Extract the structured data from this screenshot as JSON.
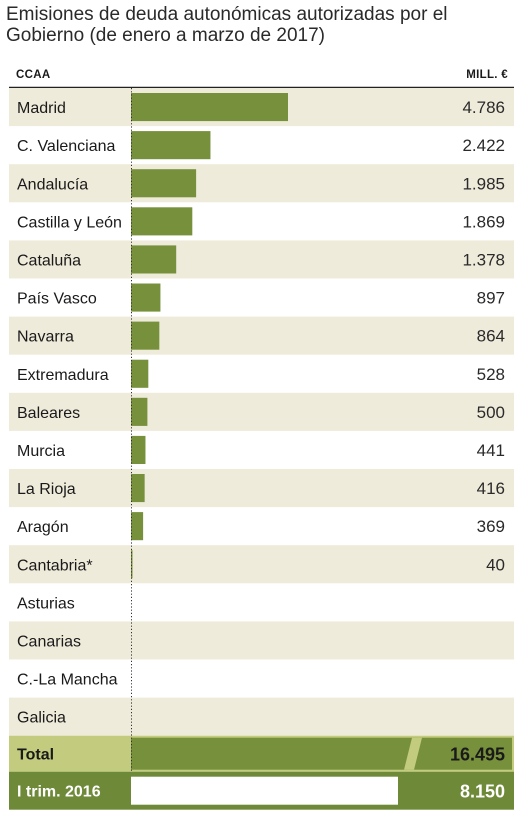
{
  "title": "Emisiones de deuda autonómicas autorizadas por el Gobierno (de enero a marzo de 2017)",
  "colors": {
    "bar": "#77903c",
    "stripe": "#efebda",
    "total_row": "#c2cb7e",
    "prev_row": "#6e8a38",
    "header_line": "#222222"
  },
  "chart_data": {
    "type": "bar",
    "orientation": "horizontal",
    "column_headers": [
      "CCAA",
      "MILL. €"
    ],
    "categories": [
      "Madrid",
      "C. Valenciana",
      "Andalucía",
      "Castilla y León",
      "Cataluña",
      "País Vasco",
      "Navarra",
      "Extremadura",
      "Baleares",
      "Murcia",
      "La Rioja",
      "Aragón",
      "Cantabria*",
      "Asturias",
      "Canarias",
      "C.-La Mancha",
      "Galicia"
    ],
    "values": [
      4786,
      2422,
      1985,
      1869,
      1378,
      897,
      864,
      528,
      500,
      441,
      416,
      369,
      40,
      null,
      null,
      null,
      null
    ],
    "value_labels": [
      "4.786",
      "2.422",
      "1.985",
      "1.869",
      "1.378",
      "897",
      "864",
      "528",
      "500",
      "441",
      "416",
      "369",
      "40",
      "",
      "",
      "",
      ""
    ],
    "total": {
      "label": "Total",
      "value": 16495,
      "value_label": "16.495"
    },
    "previous": {
      "label": "I trim. 2016",
      "value": 8150,
      "value_label": "8.150"
    },
    "grid": false
  }
}
